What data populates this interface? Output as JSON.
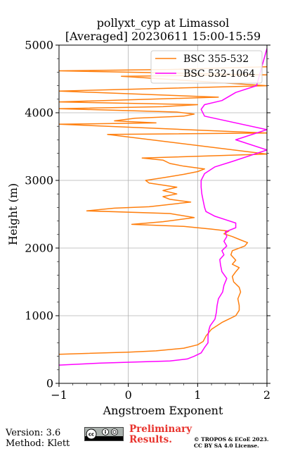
{
  "chart_data": {
    "type": "line",
    "title_line1": "pollyxt_cyp at Limassol",
    "title_line2": "[Averaged] 20230611 15:00-15:59",
    "xlabel": "Angstroem Exponent",
    "ylabel": "Height (m)",
    "xlim": [
      -1,
      2
    ],
    "ylim": [
      0,
      5000
    ],
    "x_ticks": [
      -1,
      0,
      1,
      2
    ],
    "x_tick_labels": [
      "−1",
      "0",
      "1",
      "2"
    ],
    "y_ticks": [
      0,
      1000,
      2000,
      3000,
      4000,
      5000
    ],
    "y_tick_labels": [
      "0",
      "1000",
      "2000",
      "3000",
      "4000",
      "5000"
    ],
    "grid": true,
    "legend_position": "top-right",
    "series": [
      {
        "name": "BSC 355-532",
        "color": "#ff7f0e",
        "points": [
          [
            -1.0,
            430
          ],
          [
            0.0,
            460
          ],
          [
            0.4,
            480
          ],
          [
            0.8,
            520
          ],
          [
            1.0,
            570
          ],
          [
            1.08,
            620
          ],
          [
            1.12,
            700
          ],
          [
            1.2,
            800
          ],
          [
            1.35,
            900
          ],
          [
            1.45,
            950
          ],
          [
            1.55,
            1000
          ],
          [
            1.6,
            1080
          ],
          [
            1.6,
            1150
          ],
          [
            1.58,
            1250
          ],
          [
            1.62,
            1350
          ],
          [
            1.6,
            1420
          ],
          [
            1.52,
            1500
          ],
          [
            1.5,
            1580
          ],
          [
            1.55,
            1650
          ],
          [
            1.6,
            1710
          ],
          [
            1.5,
            1760
          ],
          [
            1.55,
            1820
          ],
          [
            1.48,
            1900
          ],
          [
            1.5,
            1960
          ],
          [
            1.68,
            2030
          ],
          [
            1.72,
            2080
          ],
          [
            1.62,
            2120
          ],
          [
            1.5,
            2170
          ],
          [
            1.38,
            2210
          ],
          [
            1.45,
            2250
          ],
          [
            1.2,
            2280
          ],
          [
            0.8,
            2320
          ],
          [
            0.05,
            2350
          ],
          [
            0.5,
            2390
          ],
          [
            0.95,
            2450
          ],
          [
            0.6,
            2510
          ],
          [
            -0.6,
            2550
          ],
          [
            -0.2,
            2590
          ],
          [
            0.3,
            2610
          ],
          [
            0.9,
            2680
          ],
          [
            0.6,
            2720
          ],
          [
            0.5,
            2760
          ],
          [
            0.7,
            2800
          ],
          [
            0.5,
            2850
          ],
          [
            0.7,
            2900
          ],
          [
            0.3,
            2960
          ],
          [
            0.25,
            3000
          ],
          [
            0.5,
            3040
          ],
          [
            0.8,
            3090
          ],
          [
            1.0,
            3130
          ],
          [
            1.1,
            3170
          ],
          [
            0.8,
            3210
          ],
          [
            0.6,
            3250
          ],
          [
            0.5,
            3300
          ],
          [
            0.2,
            3330
          ],
          [
            2.0,
            3390
          ],
          [
            -0.3,
            3680
          ],
          [
            2.0,
            3700
          ],
          [
            -1.0,
            3830
          ],
          [
            0.4,
            3850
          ],
          [
            -0.2,
            3880
          ],
          [
            0.1,
            3920
          ],
          [
            0.8,
            3950
          ],
          [
            0.95,
            3980
          ],
          [
            0.7,
            4010
          ],
          [
            -1.0,
            4060
          ],
          [
            0.5,
            4090
          ],
          [
            1.0,
            4120
          ],
          [
            -1.0,
            4160
          ],
          [
            1.3,
            4230
          ],
          [
            -1.0,
            4320
          ],
          [
            2.0,
            4400
          ],
          [
            -0.1,
            4540
          ],
          [
            2.0,
            4560
          ],
          [
            -1.0,
            4620
          ],
          [
            0.6,
            4640
          ],
          [
            2.0,
            4680
          ]
        ]
      },
      {
        "name": "BSC 532-1064",
        "color": "#ff00ff",
        "points": [
          [
            -1.0,
            270
          ],
          [
            -0.4,
            300
          ],
          [
            0.6,
            330
          ],
          [
            0.85,
            360
          ],
          [
            0.95,
            400
          ],
          [
            1.05,
            450
          ],
          [
            1.1,
            530
          ],
          [
            1.15,
            600
          ],
          [
            1.15,
            700
          ],
          [
            1.16,
            780
          ],
          [
            1.18,
            850
          ],
          [
            1.25,
            950
          ],
          [
            1.27,
            1050
          ],
          [
            1.28,
            1150
          ],
          [
            1.3,
            1250
          ],
          [
            1.36,
            1350
          ],
          [
            1.38,
            1450
          ],
          [
            1.42,
            1550
          ],
          [
            1.35,
            1650
          ],
          [
            1.33,
            1750
          ],
          [
            1.32,
            1830
          ],
          [
            1.38,
            1900
          ],
          [
            1.35,
            1960
          ],
          [
            1.42,
            2030
          ],
          [
            1.38,
            2100
          ],
          [
            1.42,
            2170
          ],
          [
            1.4,
            2240
          ],
          [
            1.55,
            2300
          ],
          [
            1.55,
            2370
          ],
          [
            1.4,
            2420
          ],
          [
            1.25,
            2470
          ],
          [
            1.12,
            2540
          ],
          [
            1.1,
            2600
          ],
          [
            1.08,
            2700
          ],
          [
            1.06,
            2800
          ],
          [
            1.05,
            2900
          ],
          [
            1.05,
            3000
          ],
          [
            1.1,
            3100
          ],
          [
            1.25,
            3200
          ],
          [
            1.5,
            3280
          ],
          [
            2.0,
            3450
          ],
          [
            1.55,
            3600
          ],
          [
            2.0,
            3750
          ],
          [
            1.1,
            3950
          ],
          [
            1.05,
            4050
          ],
          [
            1.1,
            4120
          ],
          [
            1.35,
            4180
          ],
          [
            1.55,
            4300
          ],
          [
            1.85,
            4400
          ],
          [
            2.0,
            4950
          ]
        ]
      }
    ]
  },
  "footer": {
    "version": "Version: 3.6",
    "method": "Method: Klett",
    "preliminary_line1": "Preliminary",
    "preliminary_line2": "Results.",
    "license_line1": "© TROPOS & ECoE 2023.",
    "license_line2": "CC BY SA 4.0 License."
  }
}
